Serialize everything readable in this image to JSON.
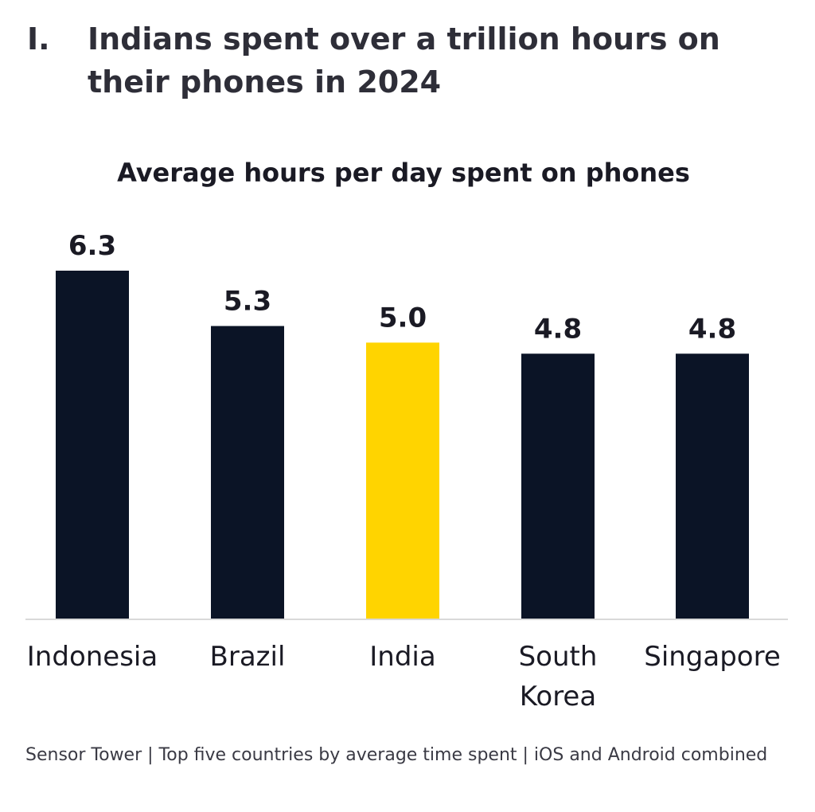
{
  "header": {
    "number": "I.",
    "title": "Indians spent over a trillion hours on their phones in 2024"
  },
  "colors": {
    "bar": "#0b1426",
    "highlight": "#ffd400",
    "axis": "#d9d9d9",
    "text": "#1a1a24"
  },
  "chart_data": {
    "type": "bar",
    "title": "Average hours per day spent on phones",
    "categories": [
      "Indonesia",
      "Brazil",
      "India",
      "South Korea",
      "Singapore"
    ],
    "category_lines": [
      [
        "Indonesia"
      ],
      [
        "Brazil"
      ],
      [
        "India"
      ],
      [
        "South",
        "Korea"
      ],
      [
        "Singapore"
      ]
    ],
    "values": [
      6.3,
      5.3,
      5.0,
      4.8,
      4.8
    ],
    "labels": [
      "6.3",
      "5.3",
      "5.0",
      "4.8",
      "4.8"
    ],
    "highlight": "India",
    "xlabel": "",
    "ylabel": "",
    "ylim": [
      0,
      6.3
    ],
    "grid": false,
    "legend": "none"
  },
  "footer": {
    "source": "Sensor Tower | Top five countries by average time spent | iOS and Android combined"
  }
}
